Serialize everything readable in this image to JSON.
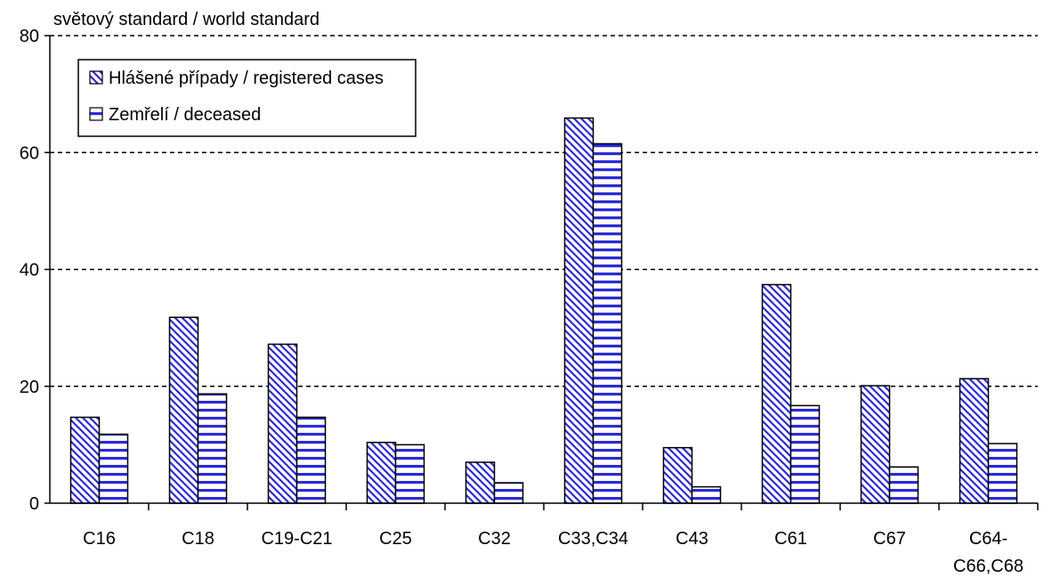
{
  "chart_data": {
    "type": "bar",
    "subtitle": "světový standard / world standard",
    "categories": [
      "C16",
      "C18",
      "C19-C21",
      "C25",
      "C32",
      "C33,C34",
      "C43",
      "C61",
      "C67",
      "C64-C66,C68"
    ],
    "category_display_lines": [
      [
        "C16"
      ],
      [
        "C18"
      ],
      [
        "C19-C21"
      ],
      [
        "C25"
      ],
      [
        "C32"
      ],
      [
        "C33,C34"
      ],
      [
        "C43"
      ],
      [
        "C61"
      ],
      [
        "C67"
      ],
      [
        "C64-",
        "C66,C68"
      ]
    ],
    "series": [
      {
        "name": "Hlášené případy / registered cases",
        "values": [
          14.7,
          31.8,
          27.2,
          10.4,
          7.0,
          65.9,
          9.5,
          37.4,
          20.1,
          21.3
        ]
      },
      {
        "name": "Zemřelí / deceased",
        "values": [
          11.8,
          18.7,
          14.7,
          10.0,
          3.5,
          61.5,
          2.8,
          16.7,
          6.2,
          10.2
        ]
      }
    ],
    "ylim": [
      0,
      80
    ],
    "yticks": [
      0,
      20,
      40,
      60,
      80
    ],
    "grid": true,
    "legend_position": "top-left",
    "colors": {
      "bar_fill": "#ffffff",
      "hatch": "#2b2bd6",
      "axis": "#000000"
    }
  }
}
